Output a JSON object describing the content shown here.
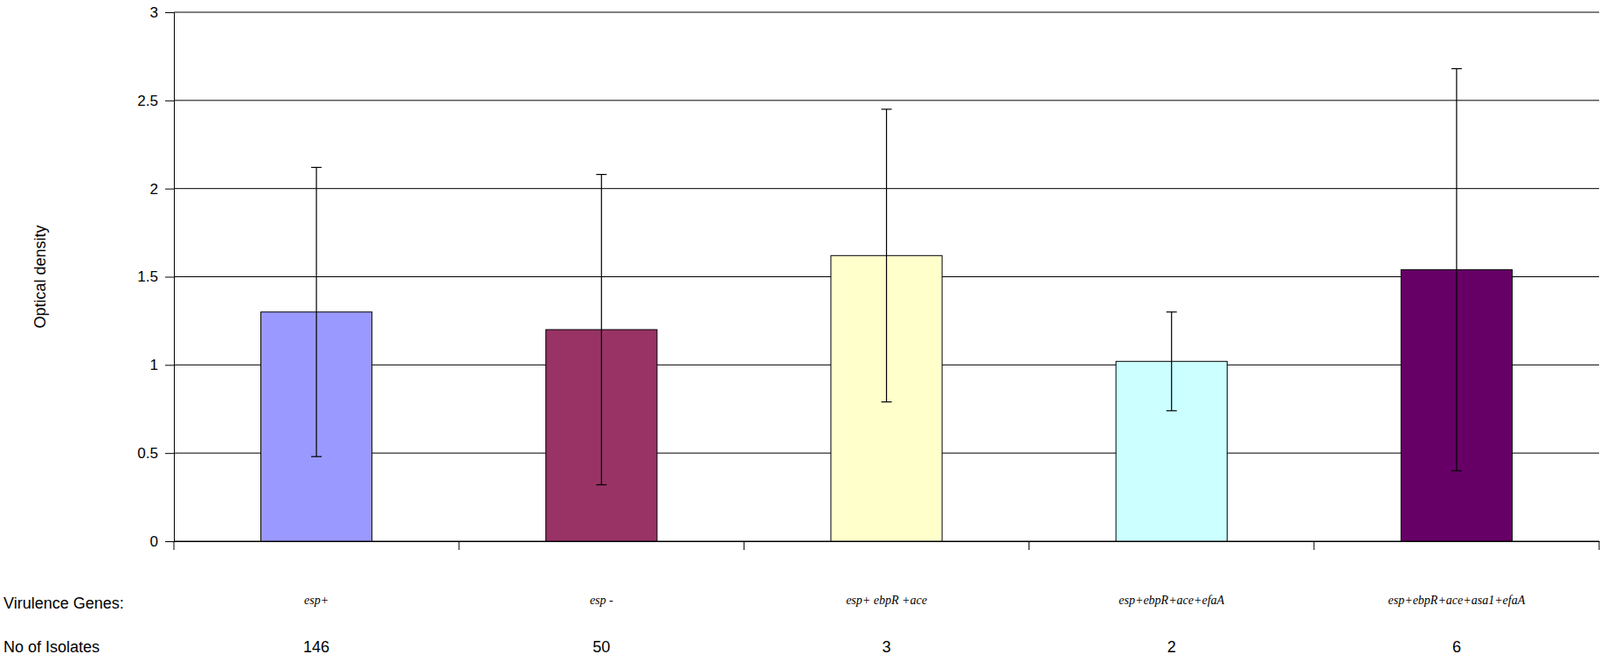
{
  "chart_data": {
    "type": "bar",
    "y_label": "Optical density",
    "category_axis_label": "Virulence Genes:",
    "categories": [
      "esp+",
      "esp -",
      "esp+ ebpR +ace",
      "esp+ebpR+ace+efaA",
      "esp+ebpR+ace+asa1+efaA"
    ],
    "values": [
      1.3,
      1.2,
      1.62,
      1.02,
      1.54
    ],
    "errors": [
      0.82,
      0.88,
      0.83,
      0.28,
      1.14
    ],
    "colors": [
      "#9999ff",
      "#993366",
      "#ffffcc",
      "#ccffff",
      "#660066"
    ],
    "isolates_label": "No of Isolates",
    "isolates": [
      146,
      50,
      3,
      2,
      6
    ],
    "ylim": [
      0,
      3
    ],
    "yticks": [
      0,
      0.5,
      1,
      1.5,
      2,
      2.5,
      3
    ],
    "grid": true
  }
}
